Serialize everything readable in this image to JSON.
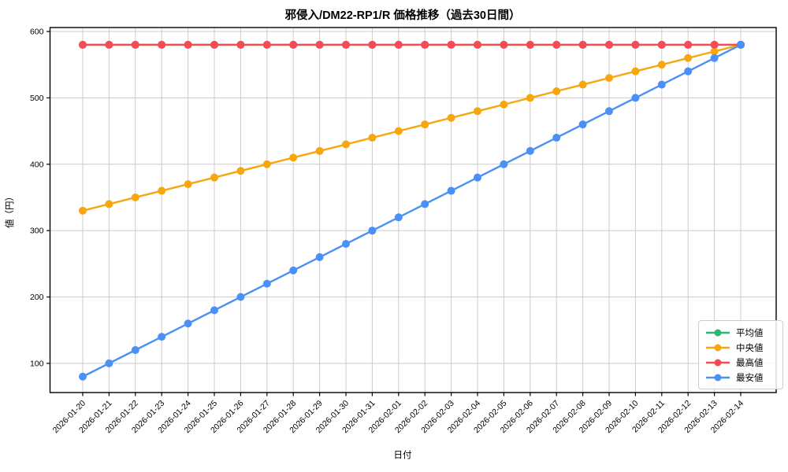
{
  "chart_data": {
    "type": "line",
    "title": "邪侵入/DM22-RP1/R 価格推移（過去30日間）",
    "xlabel": "日付",
    "ylabel": "値（円）",
    "x": [
      "2026-01-20",
      "2026-01-21",
      "2026-01-22",
      "2026-01-23",
      "2026-01-24",
      "2026-01-25",
      "2026-01-26",
      "2026-01-27",
      "2026-01-28",
      "2026-01-29",
      "2026-01-30",
      "2026-01-31",
      "2026-02-01",
      "2026-02-02",
      "2026-02-03",
      "2026-02-04",
      "2026-02-05",
      "2026-02-06",
      "2026-02-07",
      "2026-02-08",
      "2026-02-09",
      "2026-02-10",
      "2026-02-11",
      "2026-02-12",
      "2026-02-13",
      "2026-02-14"
    ],
    "series": [
      {
        "name": "平均値",
        "color": "#2bb673",
        "values": [
          580,
          580,
          580,
          580,
          580,
          580,
          580,
          580,
          580,
          580,
          580,
          580,
          580,
          580,
          580,
          580,
          580,
          580,
          580,
          580,
          580,
          580,
          580,
          580,
          580,
          580
        ]
      },
      {
        "name": "中央値",
        "color": "#f7a60e",
        "values": [
          330,
          340,
          350,
          360,
          370,
          380,
          390,
          400,
          410,
          420,
          430,
          440,
          450,
          460,
          470,
          480,
          490,
          500,
          510,
          520,
          530,
          540,
          550,
          560,
          570,
          580
        ]
      },
      {
        "name": "最高値",
        "color": "#f54b55",
        "values": [
          580,
          580,
          580,
          580,
          580,
          580,
          580,
          580,
          580,
          580,
          580,
          580,
          580,
          580,
          580,
          580,
          580,
          580,
          580,
          580,
          580,
          580,
          580,
          580,
          580,
          580
        ]
      },
      {
        "name": "最安値",
        "color": "#4a90f7",
        "values": [
          80,
          100,
          120,
          140,
          160,
          180,
          200,
          220,
          240,
          260,
          280,
          300,
          320,
          340,
          360,
          380,
          400,
          420,
          440,
          460,
          480,
          500,
          520,
          540,
          560,
          580
        ]
      }
    ],
    "ylim": [
      56,
      606
    ],
    "yticks": [
      100,
      200,
      300,
      400,
      500,
      600
    ],
    "grid": true,
    "grid_color": "#cccccc",
    "axis_color": "#000000",
    "legend_position": "lower right",
    "x_tick_rotation_deg": 45,
    "note": "平均値 (green) series is fully overlapped by 最高値 (red) at constant 580, so the green line is not visible in the plot itself, only in the legend."
  }
}
